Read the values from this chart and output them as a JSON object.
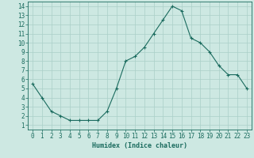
{
  "x_values": [
    0,
    1,
    2,
    3,
    4,
    5,
    6,
    7,
    8,
    9,
    10,
    11,
    12,
    13,
    14,
    15,
    16,
    17,
    18,
    19,
    20,
    21,
    22,
    23
  ],
  "y_values": [
    5.5,
    4.0,
    2.5,
    2.0,
    1.5,
    1.5,
    1.5,
    1.5,
    2.5,
    5.0,
    8.0,
    8.5,
    9.5,
    11.0,
    12.5,
    14.0,
    13.5,
    10.5,
    10.0,
    9.0,
    7.5,
    6.5,
    6.5,
    5.0
  ],
  "line_color": "#1a6b5e",
  "marker": "+",
  "marker_size": 3,
  "bg_color": "#cde8e2",
  "grid_color": "#aacfc8",
  "axis_color": "#1a6b5e",
  "xlabel": "Humidex (Indice chaleur)",
  "xlim": [
    -0.5,
    23.5
  ],
  "ylim": [
    0.5,
    14.5
  ],
  "xticks": [
    0,
    1,
    2,
    3,
    4,
    5,
    6,
    7,
    8,
    9,
    10,
    11,
    12,
    13,
    14,
    15,
    16,
    17,
    18,
    19,
    20,
    21,
    22,
    23
  ],
  "yticks": [
    1,
    2,
    3,
    4,
    5,
    6,
    7,
    8,
    9,
    10,
    11,
    12,
    13,
    14
  ],
  "label_fontsize": 6,
  "tick_fontsize": 5.5
}
